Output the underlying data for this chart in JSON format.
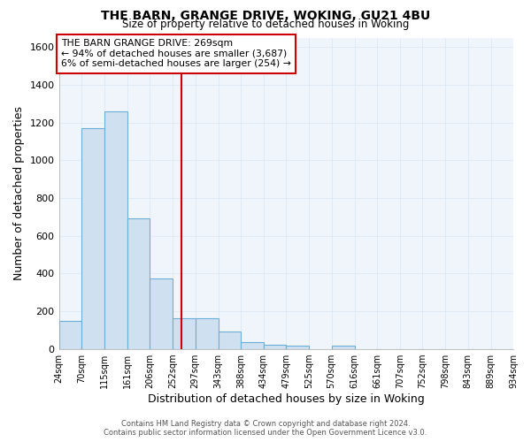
{
  "title_line1": "THE BARN, GRANGE DRIVE, WOKING, GU21 4BU",
  "title_line2": "Size of property relative to detached houses in Woking",
  "xlabel": "Distribution of detached houses by size in Woking",
  "ylabel": "Number of detached properties",
  "bin_edges": [
    24,
    70,
    115,
    161,
    206,
    252,
    297,
    343,
    388,
    434,
    479,
    525,
    570,
    616,
    661,
    707,
    752,
    798,
    843,
    889,
    934
  ],
  "counts": [
    148,
    1170,
    1260,
    690,
    375,
    160,
    160,
    90,
    35,
    20,
    15,
    0,
    15,
    0,
    0,
    0,
    0,
    0,
    0,
    0
  ],
  "bar_color": "#cfe0f0",
  "bar_edge_color": "#6baed6",
  "vline_x": 269,
  "vline_color": "#cc0000",
  "ylim": [
    0,
    1650
  ],
  "yticks": [
    0,
    200,
    400,
    600,
    800,
    1000,
    1200,
    1400,
    1600
  ],
  "annotation_title": "THE BARN GRANGE DRIVE: 269sqm",
  "annotation_line2": "← 94% of detached houses are smaller (3,687)",
  "annotation_line3": "6% of semi-detached houses are larger (254) →",
  "footer_line1": "Contains HM Land Registry data © Crown copyright and database right 2024.",
  "footer_line2": "Contains public sector information licensed under the Open Government Licence v3.0.",
  "background_color": "#ffffff",
  "plot_bg_color": "#f0f5fb",
  "grid_color": "#dde8f5"
}
